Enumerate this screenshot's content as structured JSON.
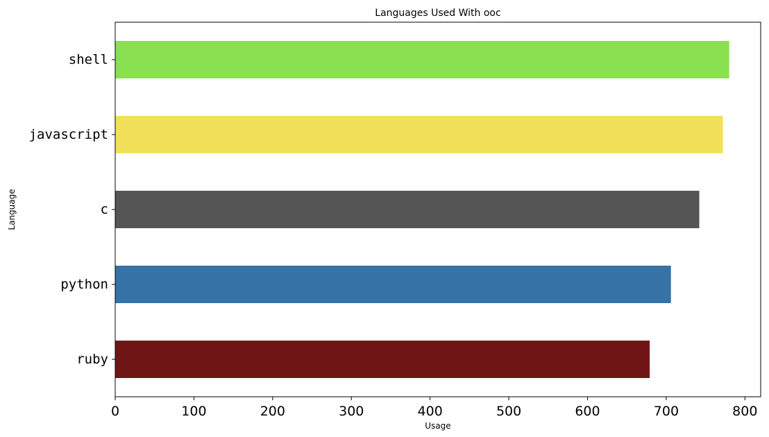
{
  "chart_data": {
    "type": "bar",
    "orientation": "horizontal",
    "title": "Languages Used With ooc",
    "xlabel": "Usage",
    "ylabel": "Language",
    "categories": [
      "ruby",
      "python",
      "c",
      "javascript",
      "shell"
    ],
    "values": [
      679,
      706,
      742,
      772,
      780
    ],
    "colors": [
      "#701516",
      "#3572A5",
      "#555555",
      "#f1e05a",
      "#89e051"
    ],
    "xlim": [
      0,
      820
    ],
    "xticks": [
      0,
      100,
      200,
      300,
      400,
      500,
      600,
      700,
      800
    ],
    "grid": false,
    "legend": "none"
  }
}
